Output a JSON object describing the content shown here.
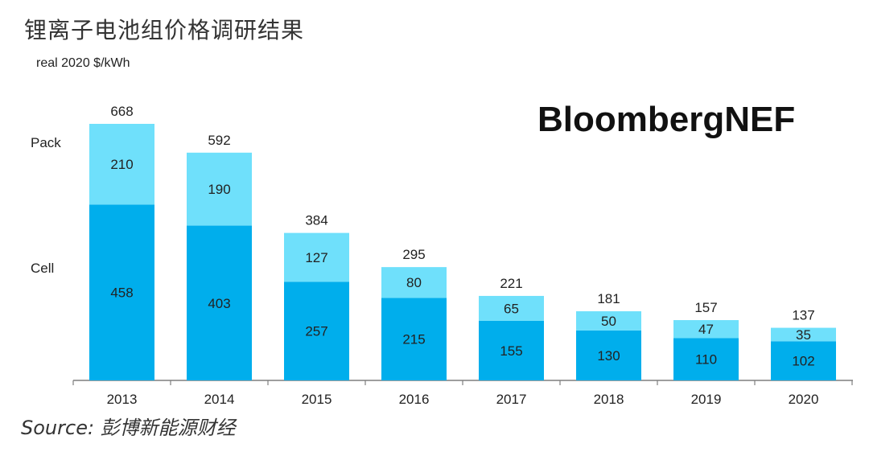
{
  "header": {
    "title": "锂离子电池组价格调研结果",
    "unit": "real 2020 $/kWh",
    "brand": "BloombergNEF"
  },
  "footer": {
    "source": "Source: 彭博新能源财经"
  },
  "legend": {
    "pack": "Pack",
    "cell": "Cell"
  },
  "colors": {
    "pack": "#6fe0fb",
    "cell": "#00aeec",
    "axis": "#7f7f7f"
  },
  "chart_data": {
    "type": "bar",
    "stacked": true,
    "categories": [
      "2013",
      "2014",
      "2015",
      "2016",
      "2017",
      "2018",
      "2019",
      "2020"
    ],
    "series": [
      {
        "name": "Cell",
        "values": [
          458,
          403,
          257,
          215,
          155,
          130,
          110,
          102
        ]
      },
      {
        "name": "Pack",
        "values": [
          210,
          190,
          127,
          80,
          65,
          50,
          47,
          35
        ]
      }
    ],
    "totals": [
      668,
      592,
      384,
      295,
      221,
      181,
      157,
      137
    ],
    "title": "锂离子电池组价格调研结果",
    "ylabel": "real 2020 $/kWh",
    "ylim": [
      0,
      668
    ],
    "grid": false,
    "legend": "left"
  }
}
